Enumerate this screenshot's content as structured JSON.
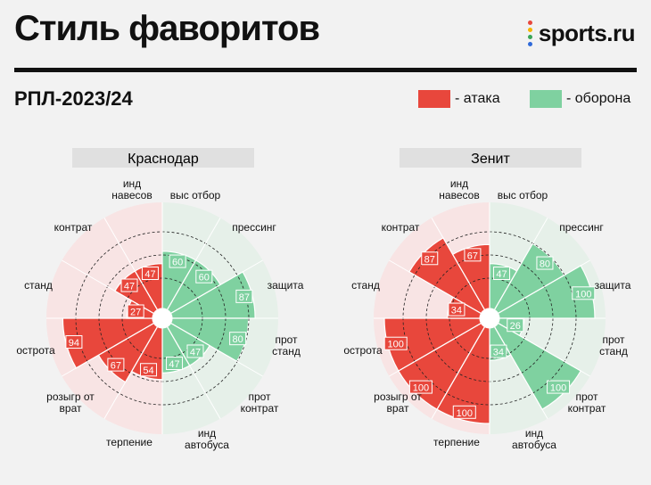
{
  "header": {
    "title": "Стиль фаворитов",
    "logo_text": "sports.ru",
    "subtitle": "РПЛ-2023/24"
  },
  "legend": [
    {
      "label": "- атака",
      "color": "#e8473c"
    },
    {
      "label": "- оборона",
      "color": "#7fd1a0"
    }
  ],
  "colors": {
    "attack": "#e8473c",
    "defense": "#7fd1a0",
    "attack_bg": "#f8e4e4",
    "defense_bg": "#e6f0e9",
    "team_box": "#e0e0e0"
  },
  "chart_data": [
    {
      "type": "polar_bar",
      "title": "Краснодар",
      "rlim": [
        0,
        100
      ],
      "categories": [
        "выс отбор",
        "прессинг",
        "защита",
        "прот стand",
        "прот контрат",
        "инд автобуса",
        "терпение",
        "розыгр от врат",
        "острота",
        "станд",
        "контрат",
        "инд навесов"
      ],
      "groups": [
        "defense",
        "defense",
        "defense",
        "defense",
        "defense",
        "defense",
        "attack",
        "attack",
        "attack",
        "attack",
        "attack",
        "attack"
      ],
      "values": [
        60,
        60,
        87,
        80,
        47,
        47,
        54,
        67,
        94,
        27,
        47,
        47
      ]
    },
    {
      "type": "polar_bar",
      "title": "Зенит",
      "rlim": [
        0,
        100
      ],
      "categories": [
        "выс отбор",
        "прессинг",
        "защита",
        "прот станд",
        "прот контрат",
        "инд автобуса",
        "терпение",
        "розыгр от врат",
        "острота",
        "станд",
        "контрат",
        "инд навесов"
      ],
      "groups": [
        "defense",
        "defense",
        "defense",
        "defense",
        "defense",
        "defense",
        "attack",
        "attack",
        "attack",
        "attack",
        "attack",
        "attack"
      ],
      "values": [
        47,
        80,
        100,
        26,
        100,
        34,
        100,
        100,
        100,
        34,
        87,
        67
      ]
    }
  ],
  "axis_labels": [
    [
      "выс отбор"
    ],
    [
      "прессинг"
    ],
    [
      "защита"
    ],
    [
      "прот",
      "станд"
    ],
    [
      "прот",
      "контрат"
    ],
    [
      "инд",
      "автобуса"
    ],
    [
      "терпение"
    ],
    [
      "розыгр от",
      "врат"
    ],
    [
      "острота"
    ],
    [
      "станд"
    ],
    [
      "контрат"
    ],
    [
      "инд",
      "навесов"
    ]
  ]
}
